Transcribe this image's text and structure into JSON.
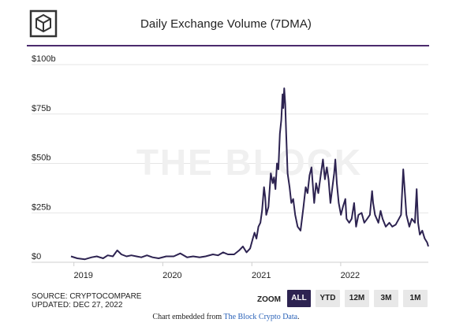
{
  "header": {
    "title": "Daily Exchange Volume (7DMA)",
    "logo_icon": "the-block-cube-logo"
  },
  "watermark": "THE BLOCK",
  "source": {
    "line1": "SOURCE: CRYPTOCOMPARE",
    "line2": "UPDATED: DEC 27, 2022"
  },
  "zoom": {
    "label": "ZOOM",
    "buttons": [
      "ALL",
      "YTD",
      "12M",
      "3M",
      "1M"
    ],
    "active": "ALL"
  },
  "embed": {
    "prefix": "Chart embedded from ",
    "link": "The Block Crypto Data",
    "suffix": "."
  },
  "colors": {
    "line": "#2d2351",
    "accent": "#4b2a6d",
    "grid": "#e6e6e6",
    "link": "#2a62b8"
  },
  "chart_data": {
    "type": "line",
    "title": "Daily Exchange Volume (7DMA)",
    "ylim": [
      0,
      100
    ],
    "y_ticks": [
      0,
      25,
      50,
      75,
      100
    ],
    "y_tick_labels": [
      "$0",
      "$25b",
      "$50b",
      "$75b",
      "$100b"
    ],
    "xlim": [
      "2018-12-20",
      "2022-12-27"
    ],
    "x_ticks": [
      "2019-01-01",
      "2020-01-01",
      "2021-01-01",
      "2022-01-01"
    ],
    "x_tick_labels": [
      "2019",
      "2020",
      "2021",
      "2022"
    ],
    "grid": "horizontal",
    "series": [
      {
        "color": "#2d2351",
        "points": [
          [
            "2018-12-20",
            3
          ],
          [
            "2019-01-15",
            2
          ],
          [
            "2019-02-15",
            1.5
          ],
          [
            "2019-03-15",
            2.5
          ],
          [
            "2019-04-05",
            3
          ],
          [
            "2019-05-01",
            2
          ],
          [
            "2019-05-20",
            3.5
          ],
          [
            "2019-06-10",
            3
          ],
          [
            "2019-06-28",
            6
          ],
          [
            "2019-07-15",
            4
          ],
          [
            "2019-08-05",
            3
          ],
          [
            "2019-08-25",
            3.5
          ],
          [
            "2019-09-15",
            3
          ],
          [
            "2019-10-05",
            2.5
          ],
          [
            "2019-10-28",
            3.5
          ],
          [
            "2019-11-20",
            2.5
          ],
          [
            "2019-12-15",
            2
          ],
          [
            "2020-01-15",
            3
          ],
          [
            "2020-02-15",
            3
          ],
          [
            "2020-03-13",
            4.5
          ],
          [
            "2020-04-10",
            2.5
          ],
          [
            "2020-05-05",
            3
          ],
          [
            "2020-06-01",
            2.5
          ],
          [
            "2020-06-25",
            3
          ],
          [
            "2020-07-25",
            4
          ],
          [
            "2020-08-15",
            3.5
          ],
          [
            "2020-09-05",
            5
          ],
          [
            "2020-09-25",
            4
          ],
          [
            "2020-10-20",
            4
          ],
          [
            "2020-11-10",
            6
          ],
          [
            "2020-11-25",
            8
          ],
          [
            "2020-12-10",
            5
          ],
          [
            "2020-12-25",
            7
          ],
          [
            "2021-01-05",
            12
          ],
          [
            "2021-01-12",
            15
          ],
          [
            "2021-01-20",
            12
          ],
          [
            "2021-01-28",
            18
          ],
          [
            "2021-02-05",
            20
          ],
          [
            "2021-02-12",
            26
          ],
          [
            "2021-02-20",
            38
          ],
          [
            "2021-02-25",
            33
          ],
          [
            "2021-03-01",
            24
          ],
          [
            "2021-03-10",
            28
          ],
          [
            "2021-03-20",
            45
          ],
          [
            "2021-03-28",
            40
          ],
          [
            "2021-04-02",
            43
          ],
          [
            "2021-04-08",
            37
          ],
          [
            "2021-04-14",
            50
          ],
          [
            "2021-04-20",
            47
          ],
          [
            "2021-04-26",
            65
          ],
          [
            "2021-05-02",
            72
          ],
          [
            "2021-05-07",
            85
          ],
          [
            "2021-05-10",
            78
          ],
          [
            "2021-05-14",
            88
          ],
          [
            "2021-05-18",
            80
          ],
          [
            "2021-05-22",
            65
          ],
          [
            "2021-05-28",
            45
          ],
          [
            "2021-06-05",
            38
          ],
          [
            "2021-06-12",
            30
          ],
          [
            "2021-06-20",
            32
          ],
          [
            "2021-06-28",
            24
          ],
          [
            "2021-07-08",
            18
          ],
          [
            "2021-07-20",
            16
          ],
          [
            "2021-08-01",
            28
          ],
          [
            "2021-08-10",
            38
          ],
          [
            "2021-08-18",
            35
          ],
          [
            "2021-08-26",
            44
          ],
          [
            "2021-09-03",
            48
          ],
          [
            "2021-09-08",
            40
          ],
          [
            "2021-09-14",
            30
          ],
          [
            "2021-09-22",
            40
          ],
          [
            "2021-10-01",
            35
          ],
          [
            "2021-10-12",
            45
          ],
          [
            "2021-10-20",
            52
          ],
          [
            "2021-10-28",
            42
          ],
          [
            "2021-11-05",
            48
          ],
          [
            "2021-11-12",
            42
          ],
          [
            "2021-11-20",
            30
          ],
          [
            "2021-11-28",
            38
          ],
          [
            "2021-12-05",
            45
          ],
          [
            "2021-12-10",
            52
          ],
          [
            "2021-12-16",
            40
          ],
          [
            "2021-12-24",
            30
          ],
          [
            "2022-01-02",
            24
          ],
          [
            "2022-01-10",
            28
          ],
          [
            "2022-01-20",
            32
          ],
          [
            "2022-01-25",
            22
          ],
          [
            "2022-02-05",
            20
          ],
          [
            "2022-02-15",
            22
          ],
          [
            "2022-02-25",
            30
          ],
          [
            "2022-03-05",
            18
          ],
          [
            "2022-03-15",
            24
          ],
          [
            "2022-03-28",
            25
          ],
          [
            "2022-04-08",
            20
          ],
          [
            "2022-04-20",
            22
          ],
          [
            "2022-05-01",
            24
          ],
          [
            "2022-05-10",
            36
          ],
          [
            "2022-05-14",
            30
          ],
          [
            "2022-05-22",
            24
          ],
          [
            "2022-06-05",
            20
          ],
          [
            "2022-06-14",
            26
          ],
          [
            "2022-06-22",
            22
          ],
          [
            "2022-07-05",
            18
          ],
          [
            "2022-07-20",
            20
          ],
          [
            "2022-08-01",
            18
          ],
          [
            "2022-08-15",
            19
          ],
          [
            "2022-08-28",
            22
          ],
          [
            "2022-09-06",
            24
          ],
          [
            "2022-09-15",
            47
          ],
          [
            "2022-09-20",
            38
          ],
          [
            "2022-09-28",
            24
          ],
          [
            "2022-10-10",
            18
          ],
          [
            "2022-10-20",
            22
          ],
          [
            "2022-11-02",
            20
          ],
          [
            "2022-11-09",
            37
          ],
          [
            "2022-11-15",
            20
          ],
          [
            "2022-11-22",
            14
          ],
          [
            "2022-12-02",
            16
          ],
          [
            "2022-12-12",
            12
          ],
          [
            "2022-12-22",
            10
          ],
          [
            "2022-12-27",
            8
          ]
        ]
      }
    ]
  }
}
